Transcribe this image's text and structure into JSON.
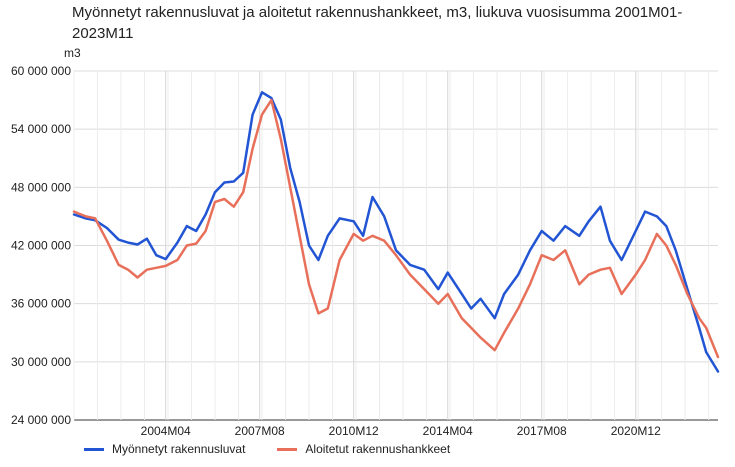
{
  "chart_data": {
    "type": "line",
    "title": "Myönnetyt rakennusluvat ja aloitetut rakennushankkeet, m3, liukuva vuosisumma 2001M01-2023M11",
    "ylabel": "m3",
    "xlabel": "",
    "ylim": [
      24000000,
      60000000
    ],
    "yticks": [
      "24 000 000",
      "30 000 000",
      "36 000 000",
      "42 000 000",
      "48 000 000",
      "54 000 000",
      "60 000 000"
    ],
    "ytick_values": [
      24000000,
      30000000,
      36000000,
      42000000,
      48000000,
      54000000,
      60000000
    ],
    "xticks": [
      "2004M04",
      "2007M08",
      "2010M12",
      "2014M04",
      "2017M08",
      "2020M12"
    ],
    "x_start": "2001M01",
    "x_end": "2023M11",
    "grid": true,
    "legend_position": "bottom-left",
    "series": [
      {
        "name": "Myönnetyt rakennusluvat",
        "color": "#2255d4",
        "points": [
          [
            "2001M01",
            45200000
          ],
          [
            "2001M06",
            44800000
          ],
          [
            "2001M10",
            44600000
          ],
          [
            "2002M03",
            43800000
          ],
          [
            "2002M08",
            42600000
          ],
          [
            "2002M12",
            42300000
          ],
          [
            "2003M04",
            42100000
          ],
          [
            "2003M08",
            42700000
          ],
          [
            "2003M12",
            41000000
          ],
          [
            "2004M04",
            40600000
          ],
          [
            "2004M09",
            42300000
          ],
          [
            "2005M01",
            44000000
          ],
          [
            "2005M05",
            43500000
          ],
          [
            "2005M09",
            45200000
          ],
          [
            "2006M01",
            47500000
          ],
          [
            "2006M05",
            48500000
          ],
          [
            "2006M09",
            48600000
          ],
          [
            "2007M01",
            49500000
          ],
          [
            "2007M05",
            55500000
          ],
          [
            "2007M09",
            57800000
          ],
          [
            "2008M01",
            57200000
          ],
          [
            "2008M05",
            55000000
          ],
          [
            "2008M09",
            50000000
          ],
          [
            "2009M01",
            46500000
          ],
          [
            "2009M05",
            42000000
          ],
          [
            "2009M09",
            40500000
          ],
          [
            "2010M01",
            43000000
          ],
          [
            "2010M06",
            44800000
          ],
          [
            "2010M12",
            44500000
          ],
          [
            "2011M04",
            43000000
          ],
          [
            "2011M08",
            47000000
          ],
          [
            "2012M01",
            45000000
          ],
          [
            "2012M06",
            41500000
          ],
          [
            "2012M12",
            40000000
          ],
          [
            "2013M06",
            39500000
          ],
          [
            "2013M12",
            37500000
          ],
          [
            "2014M04",
            39200000
          ],
          [
            "2014M10",
            37000000
          ],
          [
            "2015M02",
            35500000
          ],
          [
            "2015M06",
            36500000
          ],
          [
            "2015M12",
            34500000
          ],
          [
            "2016M04",
            37000000
          ],
          [
            "2016M10",
            39000000
          ],
          [
            "2017M03",
            41500000
          ],
          [
            "2017M08",
            43500000
          ],
          [
            "2018M01",
            42500000
          ],
          [
            "2018M06",
            44000000
          ],
          [
            "2018M12",
            43000000
          ],
          [
            "2019M04",
            44500000
          ],
          [
            "2019M09",
            46000000
          ],
          [
            "2020M01",
            42500000
          ],
          [
            "2020M06",
            40500000
          ],
          [
            "2020M12",
            43500000
          ],
          [
            "2021M04",
            45500000
          ],
          [
            "2021M09",
            45000000
          ],
          [
            "2022M01",
            44000000
          ],
          [
            "2022M05",
            41500000
          ],
          [
            "2022M10",
            37500000
          ],
          [
            "2023M03",
            33500000
          ],
          [
            "2023M06",
            31000000
          ],
          [
            "2023M11",
            29000000
          ]
        ]
      },
      {
        "name": "Aloitetut rakennushankkeet",
        "color": "#e8705a",
        "points": [
          [
            "2001M01",
            45500000
          ],
          [
            "2001M06",
            45000000
          ],
          [
            "2001M10",
            44800000
          ],
          [
            "2002M03",
            42500000
          ],
          [
            "2002M08",
            40000000
          ],
          [
            "2002M12",
            39500000
          ],
          [
            "2003M04",
            38700000
          ],
          [
            "2003M08",
            39500000
          ],
          [
            "2003M12",
            39700000
          ],
          [
            "2004M04",
            39900000
          ],
          [
            "2004M09",
            40500000
          ],
          [
            "2005M01",
            42000000
          ],
          [
            "2005M05",
            42200000
          ],
          [
            "2005M09",
            43500000
          ],
          [
            "2006M01",
            46500000
          ],
          [
            "2006M05",
            46800000
          ],
          [
            "2006M09",
            46000000
          ],
          [
            "2007M01",
            47500000
          ],
          [
            "2007M05",
            52000000
          ],
          [
            "2007M09",
            55500000
          ],
          [
            "2008M01",
            57000000
          ],
          [
            "2008M05",
            53000000
          ],
          [
            "2008M09",
            48000000
          ],
          [
            "2009M01",
            43000000
          ],
          [
            "2009M05",
            38000000
          ],
          [
            "2009M09",
            35000000
          ],
          [
            "2010M01",
            35500000
          ],
          [
            "2010M06",
            40500000
          ],
          [
            "2010M12",
            43200000
          ],
          [
            "2011M04",
            42500000
          ],
          [
            "2011M08",
            43000000
          ],
          [
            "2012M01",
            42500000
          ],
          [
            "2012M06",
            41000000
          ],
          [
            "2012M12",
            39000000
          ],
          [
            "2013M06",
            37500000
          ],
          [
            "2013M12",
            36000000
          ],
          [
            "2014M04",
            37000000
          ],
          [
            "2014M10",
            34500000
          ],
          [
            "2015M02",
            33500000
          ],
          [
            "2015M06",
            32500000
          ],
          [
            "2015M12",
            31200000
          ],
          [
            "2016M04",
            33000000
          ],
          [
            "2016M10",
            35500000
          ],
          [
            "2017M03",
            38000000
          ],
          [
            "2017M08",
            41000000
          ],
          [
            "2018M01",
            40500000
          ],
          [
            "2018M06",
            41500000
          ],
          [
            "2018M12",
            38000000
          ],
          [
            "2019M04",
            39000000
          ],
          [
            "2019M09",
            39500000
          ],
          [
            "2020M01",
            39700000
          ],
          [
            "2020M06",
            37000000
          ],
          [
            "2020M12",
            39000000
          ],
          [
            "2021M04",
            40500000
          ],
          [
            "2021M09",
            43200000
          ],
          [
            "2022M01",
            42000000
          ],
          [
            "2022M05",
            40000000
          ],
          [
            "2022M10",
            37000000
          ],
          [
            "2023M03",
            34500000
          ],
          [
            "2023M06",
            33500000
          ],
          [
            "2023M11",
            30500000
          ]
        ]
      }
    ]
  }
}
